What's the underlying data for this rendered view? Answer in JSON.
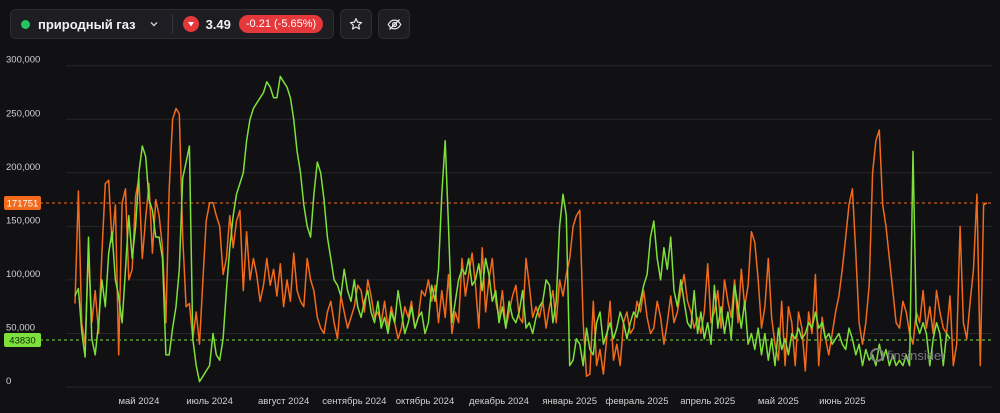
{
  "toolbar": {
    "symbol_label": "природный газ",
    "symbol_dot_color": "#22c55e",
    "price": "3.49",
    "change": "-0.21 (-5.65%)",
    "favorite_icon": "star-icon",
    "hide_icon": "eye-off-icon"
  },
  "watermark": "finsinsider",
  "chart_data": {
    "type": "line",
    "ylim": [
      0,
      310000
    ],
    "yticks": [
      "0",
      "50,000",
      "100,000",
      "150,000",
      "200,000",
      "250,000",
      "300,000"
    ],
    "ytick_values": [
      0,
      50000,
      100000,
      150000,
      200000,
      250000,
      300000
    ],
    "xticks": [
      "май 2024",
      "июль 2024",
      "август 2024",
      "сентябрь 2024",
      "октябрь 2024",
      "декабрь 2024",
      "январь 2025",
      "февраль 2025",
      "апрель 2025",
      "май 2025",
      "июнь 2025"
    ],
    "xtick_index": [
      19,
      40,
      62,
      83,
      104,
      126,
      147,
      167,
      188,
      209,
      228
    ],
    "grid": true,
    "reference_lines": [
      {
        "label": "171751",
        "value": 171751,
        "color": "#f26a1b"
      },
      {
        "label": "43830",
        "value": 43830,
        "color": "#7ee03a"
      }
    ],
    "series": [
      {
        "color": "#f26a1b",
        "values": [
          78000,
          183000,
          60000,
          40000,
          125000,
          60000,
          90000,
          50000,
          125000,
          190000,
          193000,
          135000,
          170000,
          30000,
          172000,
          185000,
          100000,
          110000,
          178000,
          195000,
          120000,
          158000,
          190000,
          125000,
          175000,
          160000,
          130000,
          60000,
          185000,
          250000,
          260000,
          255000,
          140000,
          75000,
          78000,
          45000,
          70000,
          40000,
          100000,
          155000,
          172000,
          172000,
          160000,
          150000,
          105000,
          120000,
          160000,
          130000,
          155000,
          165000,
          90000,
          145000,
          100000,
          120000,
          105000,
          80000,
          95000,
          120000,
          95000,
          110000,
          85000,
          115000,
          75000,
          100000,
          80000,
          125000,
          90000,
          80000,
          75000,
          120000,
          100000,
          90000,
          65000,
          55000,
          50000,
          70000,
          80000,
          60000,
          45000,
          85000,
          70000,
          55000,
          65000,
          75000,
          95000,
          90000,
          70000,
          100000,
          85000,
          65000,
          70000,
          60000,
          80000,
          55000,
          75000,
          60000,
          45000,
          55000,
          75000,
          65000,
          80000,
          55000,
          65000,
          90000,
          85000,
          100000,
          80000,
          95000,
          60000,
          90000,
          65000,
          105000,
          50000,
          70000,
          60000,
          120000,
          85000,
          105000,
          125000,
          95000,
          55000,
          130000,
          70000,
          100000,
          120000,
          80000,
          65000,
          90000,
          55000,
          70000,
          85000,
          95000,
          65000,
          60000,
          120000,
          95000,
          65000,
          75000,
          65000,
          80000,
          55000,
          75000,
          90000,
          60000,
          100000,
          85000,
          105000,
          120000,
          150000,
          160000,
          165000,
          60000,
          10000,
          12000,
          80000,
          20000,
          35000,
          12000,
          45000,
          80000,
          25000,
          40000,
          20000,
          60000,
          70000,
          50000,
          55000,
          80000,
          70000,
          90000,
          65000,
          50000,
          55000,
          80000,
          65000,
          40000,
          60000,
          85000,
          60000,
          70000,
          90000,
          105000,
          80000,
          70000,
          55000,
          65000,
          50000,
          70000,
          115000,
          60000,
          70000,
          90000,
          55000,
          100000,
          80000,
          65000,
          100000,
          60000,
          110000,
          75000,
          95000,
          145000,
          135000,
          100000,
          55000,
          75000,
          120000,
          65000,
          40000,
          25000,
          80000,
          20000,
          75000,
          60000,
          20000,
          70000,
          55000,
          15000,
          70000,
          50000,
          105000,
          20000,
          65000,
          45000,
          30000,
          50000,
          70000,
          85000,
          110000,
          140000,
          170000,
          185000,
          125000,
          60000,
          40000,
          60000,
          95000,
          200000,
          230000,
          240000,
          170000,
          150000,
          120000,
          90000,
          60000,
          55000,
          80000,
          70000,
          50000,
          40000,
          70000,
          60000,
          90000,
          55000,
          75000,
          50000,
          90000,
          70000,
          55000,
          50000,
          85000,
          20000,
          40000,
          150000,
          60000,
          45000,
          80000,
          110000,
          180000,
          20000,
          170000,
          172000
        ]
      },
      {
        "color": "#7ee03a",
        "values": [
          85000,
          92000,
          52000,
          28000,
          140000,
          45000,
          30000,
          60000,
          100000,
          75000,
          125000,
          145000,
          100000,
          85000,
          60000,
          110000,
          160000,
          120000,
          150000,
          200000,
          225000,
          215000,
          175000,
          165000,
          140000,
          140000,
          120000,
          30000,
          30000,
          55000,
          75000,
          110000,
          195000,
          210000,
          225000,
          45000,
          20000,
          5000,
          10000,
          15000,
          20000,
          50000,
          30000,
          25000,
          45000,
          90000,
          130000,
          160000,
          180000,
          190000,
          200000,
          230000,
          250000,
          260000,
          265000,
          270000,
          275000,
          285000,
          280000,
          270000,
          270000,
          290000,
          285000,
          280000,
          270000,
          250000,
          220000,
          200000,
          170000,
          150000,
          140000,
          180000,
          210000,
          200000,
          175000,
          140000,
          120000,
          100000,
          95000,
          85000,
          110000,
          90000,
          80000,
          100000,
          75000,
          65000,
          80000,
          90000,
          70000,
          60000,
          80000,
          55000,
          65000,
          50000,
          70000,
          60000,
          90000,
          70000,
          50000,
          60000,
          75000,
          55000,
          65000,
          70000,
          50000,
          60000,
          95000,
          80000,
          110000,
          180000,
          230000,
          150000,
          60000,
          80000,
          100000,
          110000,
          105000,
          120000,
          95000,
          100000,
          115000,
          90000,
          120000,
          105000,
          80000,
          90000,
          60000,
          75000,
          55000,
          80000,
          65000,
          60000,
          70000,
          90000,
          55000,
          60000,
          50000,
          65000,
          75000,
          80000,
          100000,
          95000,
          60000,
          80000,
          150000,
          180000,
          160000,
          20000,
          25000,
          45000,
          40000,
          20000,
          55000,
          35000,
          30000,
          60000,
          70000,
          40000,
          50000,
          60000,
          45000,
          55000,
          70000,
          60000,
          45000,
          60000,
          70000,
          65000,
          80000,
          95000,
          105000,
          140000,
          155000,
          120000,
          100000,
          130000,
          110000,
          140000,
          90000,
          75000,
          100000,
          80000,
          60000,
          55000,
          90000,
          50000,
          70000,
          45000,
          60000,
          40000,
          95000,
          55000,
          75000,
          50000,
          70000,
          45000,
          95000,
          75000,
          55000,
          80000,
          40000,
          50000,
          35000,
          55000,
          30000,
          50000,
          25000,
          45000,
          20000,
          55000,
          35000,
          45000,
          30000,
          50000,
          45000,
          55000,
          45000,
          50000,
          60000,
          55000,
          70000,
          55000,
          60000,
          45000,
          50000,
          40000,
          45000,
          50000,
          40000,
          35000,
          55000,
          45000,
          30000,
          40000,
          20000,
          35000,
          25000,
          30000,
          20000,
          40000,
          25000,
          35000,
          20000,
          30000,
          20000,
          25000,
          20000,
          30000,
          20000,
          220000,
          60000,
          50000,
          60000,
          50000,
          20000,
          45000,
          60000,
          50000,
          20000,
          50000,
          45000
        ]
      }
    ]
  }
}
